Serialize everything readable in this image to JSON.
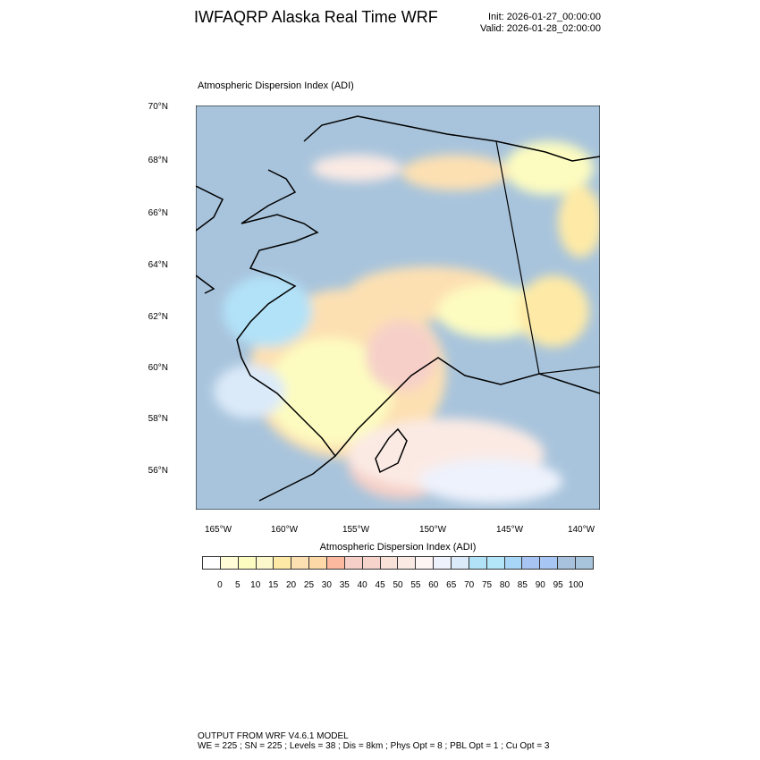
{
  "header": {
    "title": "IWFAQRP Alaska Real Time WRF",
    "init": "Init: 2026-01-27_00:00:00",
    "valid": "Valid: 2026-01-28_02:00:00"
  },
  "map": {
    "subtitle": "Atmospheric Dispersion Index   (ADI)",
    "lat_labels": [
      "70°N",
      "68°N",
      "66°N",
      "64°N",
      "62°N",
      "60°N",
      "58°N",
      "56°N"
    ],
    "lon_labels": [
      "165°W",
      "160°W",
      "155°W",
      "150°W",
      "145°W",
      "140°W"
    ],
    "ocean_color": "#a8c4dc"
  },
  "colorbar": {
    "title": "Atmospheric Dispersion Index  (ADI)",
    "labels": [
      "0",
      "5",
      "10",
      "15",
      "20",
      "25",
      "30",
      "35",
      "40",
      "45",
      "50",
      "55",
      "60",
      "65",
      "70",
      "75",
      "80",
      "85",
      "90",
      "95",
      "100"
    ],
    "colors": [
      "#ffffff",
      "#fefdd6",
      "#fdfcc0",
      "#fcf8cc",
      "#feeaa6",
      "#fde0b2",
      "#fdd9a8",
      "#fcb9a0",
      "#f6d0c8",
      "#f6d4cc",
      "#f8e2d8",
      "#fbeae4",
      "#fdf4f4",
      "#eef2fc",
      "#dbeaf9",
      "#b2e2f8",
      "#b4e6fa",
      "#a8d6f6",
      "#a8c4f2",
      "#a8c6f4",
      "#a8c2de",
      "#a8c4dc"
    ]
  },
  "footer": {
    "line1": "OUTPUT FROM WRF V4.6.1 MODEL",
    "line2": "WE = 225 ; SN = 225 ; Levels = 38 ; Dis = 8km ; Phys Opt = 8 ; PBL Opt = 1 ; Cu Opt = 3"
  }
}
